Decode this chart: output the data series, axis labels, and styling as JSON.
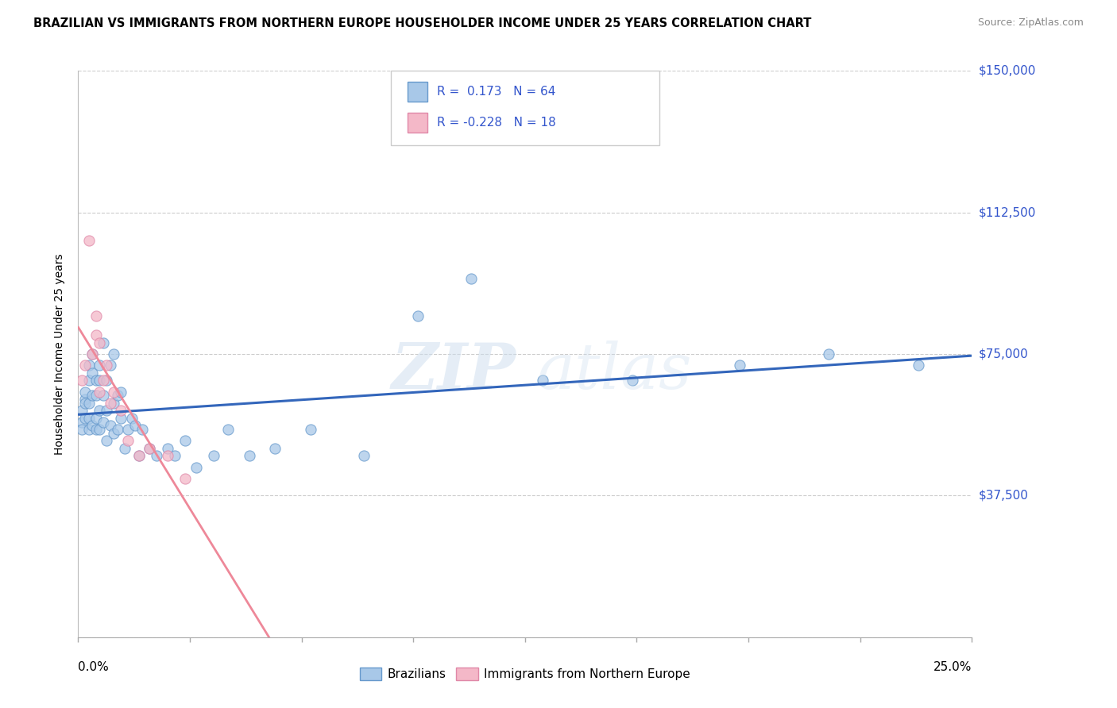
{
  "title": "BRAZILIAN VS IMMIGRANTS FROM NORTHERN EUROPE HOUSEHOLDER INCOME UNDER 25 YEARS CORRELATION CHART",
  "source": "Source: ZipAtlas.com",
  "ylabel": "Householder Income Under 25 years",
  "legend_label_1": "Brazilians",
  "legend_label_2": "Immigrants from Northern Europe",
  "R1": 0.173,
  "N1": 64,
  "R2": -0.228,
  "N2": 18,
  "ylim": [
    0,
    150000
  ],
  "xlim": [
    0.0,
    0.25
  ],
  "yticks": [
    0,
    37500,
    75000,
    112500,
    150000
  ],
  "ytick_labels": [
    "",
    "$37,500",
    "$75,000",
    "$112,500",
    "$150,000"
  ],
  "color_blue": "#a8c8e8",
  "color_pink": "#f4b8c8",
  "color_blue_edge": "#6699cc",
  "color_pink_edge": "#e088a8",
  "color_blue_line": "#3366bb",
  "color_pink_line": "#ee8899",
  "color_text_blue": "#3355cc",
  "background_color": "#ffffff",
  "grid_color": "#cccccc",
  "brazilians_x": [
    0.001,
    0.001,
    0.001,
    0.002,
    0.002,
    0.002,
    0.002,
    0.003,
    0.003,
    0.003,
    0.003,
    0.003,
    0.004,
    0.004,
    0.004,
    0.004,
    0.005,
    0.005,
    0.005,
    0.005,
    0.006,
    0.006,
    0.006,
    0.006,
    0.007,
    0.007,
    0.007,
    0.008,
    0.008,
    0.008,
    0.009,
    0.009,
    0.01,
    0.01,
    0.01,
    0.011,
    0.011,
    0.012,
    0.012,
    0.013,
    0.014,
    0.015,
    0.016,
    0.017,
    0.018,
    0.02,
    0.022,
    0.025,
    0.027,
    0.03,
    0.033,
    0.038,
    0.042,
    0.048,
    0.055,
    0.065,
    0.08,
    0.095,
    0.11,
    0.13,
    0.155,
    0.185,
    0.21,
    0.235
  ],
  "brazilians_y": [
    60000,
    57000,
    55000,
    63000,
    58000,
    65000,
    62000,
    68000,
    72000,
    58000,
    55000,
    62000,
    56000,
    64000,
    70000,
    75000,
    58000,
    64000,
    68000,
    55000,
    55000,
    60000,
    68000,
    72000,
    57000,
    64000,
    78000,
    52000,
    60000,
    68000,
    56000,
    72000,
    54000,
    62000,
    75000,
    55000,
    64000,
    58000,
    65000,
    50000,
    55000,
    58000,
    56000,
    48000,
    55000,
    50000,
    48000,
    50000,
    48000,
    52000,
    45000,
    48000,
    55000,
    48000,
    50000,
    55000,
    48000,
    85000,
    95000,
    68000,
    68000,
    72000,
    75000,
    72000
  ],
  "immigrants_x": [
    0.001,
    0.002,
    0.003,
    0.004,
    0.005,
    0.005,
    0.006,
    0.006,
    0.007,
    0.008,
    0.009,
    0.01,
    0.012,
    0.014,
    0.017,
    0.02,
    0.025,
    0.03
  ],
  "immigrants_y": [
    68000,
    72000,
    105000,
    75000,
    80000,
    85000,
    78000,
    65000,
    68000,
    72000,
    62000,
    65000,
    60000,
    52000,
    48000,
    50000,
    48000,
    42000
  ]
}
